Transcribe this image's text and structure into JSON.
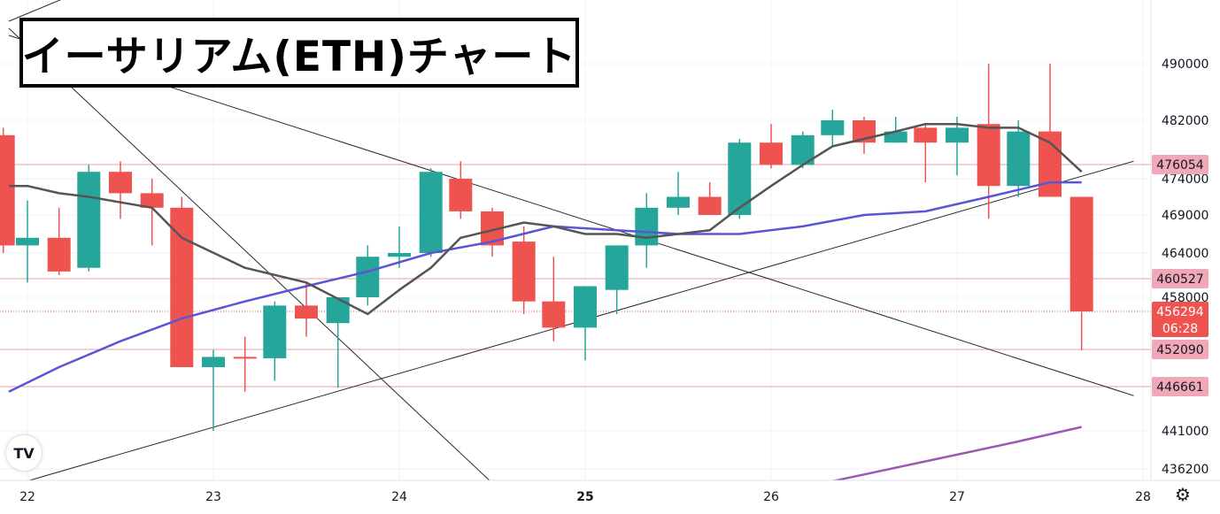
{
  "title": "イーサリアム(ETH)チャート",
  "logo_text": "TV",
  "settings_icon": "gear-icon",
  "colors": {
    "up": "#26a69a",
    "down": "#ef5350",
    "ma_short": "#555555",
    "ma_long": "#5b55d6",
    "ma_purple": "#9b59b6",
    "hline": "#e8a0a8",
    "price_tag": "#ef5350",
    "level_tag": "#f0a8b8"
  },
  "chart_data": {
    "type": "candlestick",
    "y_range": [
      434000,
      498000
    ],
    "x_range": [
      21.9,
      28.05
    ],
    "y_ticks": [
      {
        "value": 490000,
        "label": "490000"
      },
      {
        "value": 482000,
        "label": "482000"
      },
      {
        "value": 474000,
        "label": "474000"
      },
      {
        "value": 469000,
        "label": "469000"
      },
      {
        "value": 464000,
        "label": "464000"
      },
      {
        "value": 458000,
        "label": "458000"
      },
      {
        "value": 441000,
        "label": "441000"
      },
      {
        "value": 436200,
        "label": "436200"
      }
    ],
    "x_ticks": [
      {
        "value": 22,
        "label": "22",
        "bold": false
      },
      {
        "value": 23,
        "label": "23",
        "bold": false
      },
      {
        "value": 24,
        "label": "24",
        "bold": false
      },
      {
        "value": 25,
        "label": "25",
        "bold": true
      },
      {
        "value": 26,
        "label": "26",
        "bold": false
      },
      {
        "value": 27,
        "label": "27",
        "bold": false
      },
      {
        "value": 28,
        "label": "28",
        "bold": false
      }
    ],
    "levels": [
      {
        "value": 476054,
        "label": "476054"
      },
      {
        "value": 460527,
        "label": "460527"
      },
      {
        "value": 452090,
        "label": "452090"
      },
      {
        "value": 446661,
        "label": "446661"
      }
    ],
    "current_price": {
      "value": 456294,
      "label": "456294",
      "countdown": "06:28"
    },
    "candles": [
      {
        "t": 21.87,
        "o": 480000,
        "h": 481000,
        "l": 464000,
        "c": 465000
      },
      {
        "t": 22.0,
        "o": 465000,
        "h": 471000,
        "l": 460000,
        "c": 466000
      },
      {
        "t": 22.17,
        "o": 466000,
        "h": 470000,
        "l": 461000,
        "c": 461500
      },
      {
        "t": 22.33,
        "o": 462000,
        "h": 476000,
        "l": 461500,
        "c": 475000
      },
      {
        "t": 22.5,
        "o": 475000,
        "h": 476500,
        "l": 468500,
        "c": 472000
      },
      {
        "t": 22.67,
        "o": 472000,
        "h": 474000,
        "l": 465000,
        "c": 470000
      },
      {
        "t": 22.83,
        "o": 470000,
        "h": 471500,
        "l": 449500,
        "c": 449500
      },
      {
        "t": 23.0,
        "o": 449500,
        "h": 452000,
        "l": 441000,
        "c": 451000
      },
      {
        "t": 23.17,
        "o": 451000,
        "h": 453500,
        "l": 446000,
        "c": 450800
      },
      {
        "t": 23.33,
        "o": 450800,
        "h": 457500,
        "l": 447500,
        "c": 457000
      },
      {
        "t": 23.5,
        "o": 457000,
        "h": 460000,
        "l": 453500,
        "c": 455500
      },
      {
        "t": 23.67,
        "o": 455000,
        "h": 458000,
        "l": 446500,
        "c": 458000
      },
      {
        "t": 23.83,
        "o": 458000,
        "h": 465000,
        "l": 457000,
        "c": 463500
      },
      {
        "t": 24.0,
        "o": 463500,
        "h": 467500,
        "l": 462000,
        "c": 464000
      },
      {
        "t": 24.17,
        "o": 464000,
        "h": 475500,
        "l": 463500,
        "c": 475000
      },
      {
        "t": 24.33,
        "o": 474000,
        "h": 476500,
        "l": 468500,
        "c": 469500
      },
      {
        "t": 24.5,
        "o": 469500,
        "h": 470000,
        "l": 463500,
        "c": 465000
      },
      {
        "t": 24.67,
        "o": 465500,
        "h": 467500,
        "l": 456000,
        "c": 457500
      },
      {
        "t": 24.83,
        "o": 457500,
        "h": 463500,
        "l": 453000,
        "c": 454500
      },
      {
        "t": 25.0,
        "o": 454500,
        "h": 459500,
        "l": 450500,
        "c": 459500
      },
      {
        "t": 25.17,
        "o": 459000,
        "h": 465000,
        "l": 456000,
        "c": 465000
      },
      {
        "t": 25.33,
        "o": 465000,
        "h": 472000,
        "l": 462000,
        "c": 470000
      },
      {
        "t": 25.5,
        "o": 470000,
        "h": 475000,
        "l": 469000,
        "c": 471500
      },
      {
        "t": 25.67,
        "o": 471500,
        "h": 473500,
        "l": 469000,
        "c": 469000
      },
      {
        "t": 25.83,
        "o": 469000,
        "h": 479500,
        "l": 468500,
        "c": 479000
      },
      {
        "t": 26.0,
        "o": 479000,
        "h": 481500,
        "l": 475500,
        "c": 476000
      },
      {
        "t": 26.17,
        "o": 476000,
        "h": 480500,
        "l": 475500,
        "c": 480000
      },
      {
        "t": 26.33,
        "o": 480000,
        "h": 483500,
        "l": 478500,
        "c": 482000
      },
      {
        "t": 26.5,
        "o": 482000,
        "h": 482500,
        "l": 477500,
        "c": 479000
      },
      {
        "t": 26.67,
        "o": 479000,
        "h": 482500,
        "l": 479000,
        "c": 480500
      },
      {
        "t": 26.83,
        "o": 481000,
        "h": 481500,
        "l": 473500,
        "c": 479000
      },
      {
        "t": 27.0,
        "o": 479000,
        "h": 482500,
        "l": 474500,
        "c": 481000
      },
      {
        "t": 27.17,
        "o": 481500,
        "h": 490000,
        "l": 468500,
        "c": 473000
      },
      {
        "t": 27.33,
        "o": 473000,
        "h": 482000,
        "l": 471500,
        "c": 480500
      },
      {
        "t": 27.5,
        "o": 480500,
        "h": 490000,
        "l": 471500,
        "c": 471500
      },
      {
        "t": 27.67,
        "o": 471500,
        "h": 471500,
        "l": 452000,
        "c": 456294
      }
    ],
    "ma_short": [
      [
        21.9,
        473000
      ],
      [
        22.0,
        473000
      ],
      [
        22.17,
        472000
      ],
      [
        22.33,
        471500
      ],
      [
        22.67,
        470000
      ],
      [
        22.83,
        466000
      ],
      [
        23.17,
        462000
      ],
      [
        23.5,
        460000
      ],
      [
        23.83,
        456000
      ],
      [
        24.0,
        459000
      ],
      [
        24.17,
        462000
      ],
      [
        24.33,
        466000
      ],
      [
        24.67,
        468000
      ],
      [
        24.83,
        467500
      ],
      [
        25.0,
        466500
      ],
      [
        25.17,
        466500
      ],
      [
        25.33,
        466000
      ],
      [
        25.5,
        466500
      ],
      [
        25.67,
        467000
      ],
      [
        25.83,
        470000
      ],
      [
        26.0,
        473000
      ],
      [
        26.17,
        476000
      ],
      [
        26.33,
        478500
      ],
      [
        26.5,
        479500
      ],
      [
        26.67,
        480500
      ],
      [
        26.83,
        481500
      ],
      [
        27.0,
        481500
      ],
      [
        27.17,
        481000
      ],
      [
        27.33,
        481000
      ],
      [
        27.5,
        479000
      ],
      [
        27.67,
        475000
      ]
    ],
    "ma_long": [
      [
        21.9,
        446000
      ],
      [
        22.17,
        449500
      ],
      [
        22.5,
        453000
      ],
      [
        22.83,
        455500
      ],
      [
        23.17,
        457500
      ],
      [
        23.5,
        459500
      ],
      [
        23.83,
        461500
      ],
      [
        24.17,
        464000
      ],
      [
        24.5,
        465500
      ],
      [
        24.83,
        467500
      ],
      [
        25.17,
        467000
      ],
      [
        25.5,
        466500
      ],
      [
        25.83,
        466500
      ],
      [
        26.17,
        467500
      ],
      [
        26.5,
        469000
      ],
      [
        26.83,
        469500
      ],
      [
        27.17,
        471500
      ],
      [
        27.5,
        473500
      ],
      [
        27.67,
        473500
      ]
    ],
    "ma_purple": [
      [
        26.1,
        433500
      ],
      [
        26.5,
        435500
      ],
      [
        26.9,
        437500
      ],
      [
        27.3,
        439500
      ],
      [
        27.67,
        441500
      ]
    ],
    "trendlines": [
      {
        "from": [
          21.9,
          496000
        ],
        "to": [
          22.45,
          502000
        ]
      },
      {
        "from": [
          21.9,
          495000
        ],
        "to": [
          24.7,
          430000
        ]
      },
      {
        "from": [
          21.9,
          494000
        ],
        "to": [
          27.95,
          445500
        ]
      },
      {
        "from": [
          21.9,
          434000
        ],
        "to": [
          27.95,
          476500
        ]
      }
    ]
  }
}
